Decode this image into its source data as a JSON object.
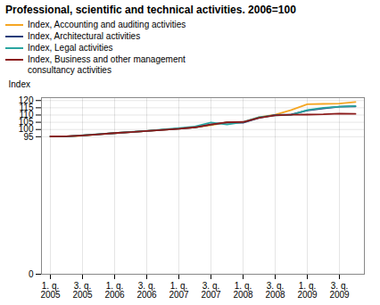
{
  "chart_data": {
    "type": "line",
    "title": "Professional, scientific and technical activities. 2006=100",
    "ylabel": "Index",
    "categories": [
      "1. q.\n2005",
      null,
      "3. q.\n2005",
      null,
      "1. q.\n2006",
      null,
      "3. q.\n2006",
      null,
      "1. q.\n2007",
      null,
      "3. q.\n2007",
      null,
      "1. q.\n2008",
      null,
      "3. q.\n2008",
      null,
      "1. q.\n2009",
      null,
      "3. q.\n2009",
      null
    ],
    "series": [
      {
        "name": "Index, Accounting and auditing activities",
        "color": "#f5a623",
        "values": [
          95.1,
          95.2,
          95.8,
          96.7,
          97.5,
          98.2,
          99.0,
          99.8,
          100.5,
          101.5,
          103.0,
          104.9,
          105.0,
          108.5,
          110.2,
          113.5,
          117.5,
          117.7,
          117.9,
          119.0
        ]
      },
      {
        "name": "Index, Architectural activities",
        "color": "#1f3d7a",
        "values": [
          95.2,
          95.3,
          95.9,
          96.7,
          97.5,
          98.2,
          99.0,
          99.8,
          100.5,
          101.5,
          103.5,
          104.8,
          104.7,
          108.0,
          110.1,
          110.3,
          113.2,
          114.5,
          115.8,
          116.0
        ]
      },
      {
        "name": "Index, Legal activities",
        "color": "#2aa5a0",
        "values": [
          95.3,
          95.1,
          96.1,
          96.8,
          97.5,
          98.3,
          99.0,
          100.0,
          101.0,
          102.0,
          104.8,
          103.5,
          105.2,
          108.5,
          109.8,
          110.0,
          113.5,
          115.0,
          115.8,
          116.2
        ]
      },
      {
        "name": "Index, Business and other management\nconsultancy activities",
        "color": "#8b1a1a",
        "values": [
          95.2,
          95.3,
          95.9,
          96.7,
          97.5,
          98.2,
          99.0,
          99.8,
          100.5,
          101.5,
          103.5,
          105.0,
          105.2,
          108.0,
          109.8,
          110.2,
          110.3,
          110.5,
          111.0,
          110.8
        ]
      }
    ],
    "ylim": [
      0,
      122
    ],
    "yticks": [
      0,
      95,
      100,
      105,
      110,
      115,
      120
    ],
    "grid": true,
    "legend": "upper left"
  }
}
